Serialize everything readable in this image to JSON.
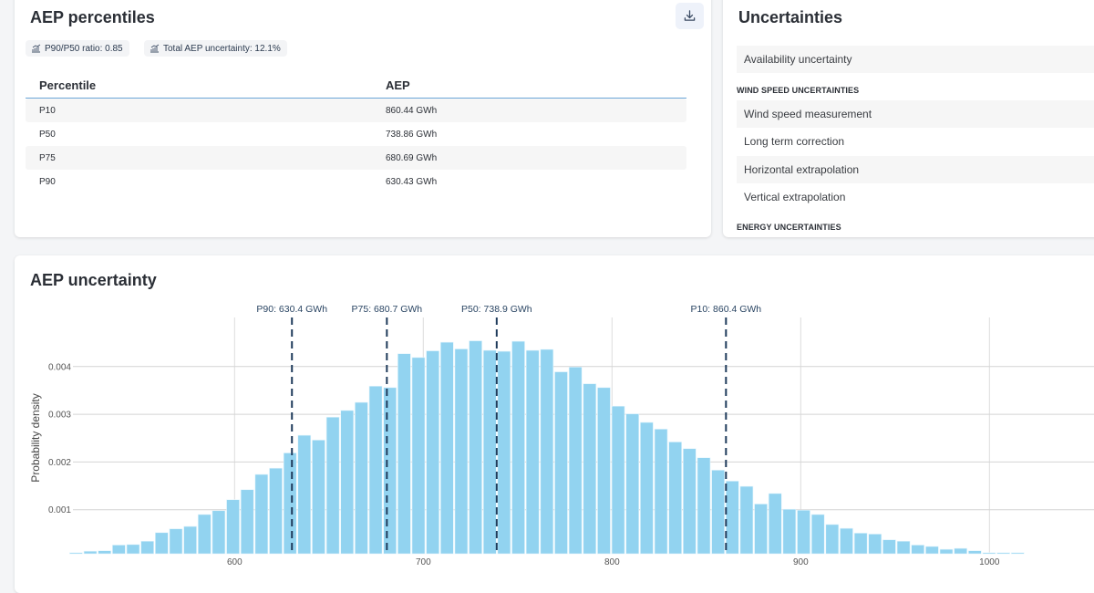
{
  "percentiles_card": {
    "title": "AEP percentiles",
    "download_icon": "download-icon",
    "badges": [
      {
        "icon": "chart-growth-icon",
        "label": "P90/P50 ratio: 0.85"
      },
      {
        "icon": "chart-growth-icon",
        "label": "Total AEP uncertainty: 12.1%"
      }
    ],
    "columns": [
      "Percentile",
      "AEP"
    ],
    "rows": [
      {
        "percentile": "P10",
        "aep": "860.44 GWh"
      },
      {
        "percentile": "P50",
        "aep": "738.86 GWh"
      },
      {
        "percentile": "P75",
        "aep": "680.69 GWh"
      },
      {
        "percentile": "P90",
        "aep": "630.43 GWh"
      }
    ]
  },
  "uncertainties_card": {
    "title": "Uncertainties",
    "top_item": "Availability uncertainty",
    "sections": [
      {
        "label": "WIND SPEED UNCERTAINTIES",
        "items": [
          "Wind speed measurement",
          "Long term correction",
          "Horizontal extrapolation",
          "Vertical extrapolation"
        ]
      },
      {
        "label": "ENERGY UNCERTAINTIES",
        "items": []
      }
    ]
  },
  "chart_card": {
    "title": "AEP uncertainty"
  },
  "chart_data": {
    "type": "bar",
    "title": "AEP uncertainty",
    "xlabel": "",
    "ylabel": "Probability density",
    "bar_color": "#92d3f0",
    "marker_color": "#1e3a5a",
    "grid": true,
    "xlim": [
      505,
      1070
    ],
    "ylim": [
      0,
      0.0046
    ],
    "xticks": [
      600,
      700,
      800,
      900,
      1000
    ],
    "yticks": [
      0.001,
      0.002,
      0.003,
      0.004
    ],
    "ytick_labels": [
      "0.001",
      "0.002",
      "0.003",
      "0.004"
    ],
    "bin_start": 516,
    "bin_width": 7.56,
    "values": [
      0.0001,
      0.00013,
      0.00014,
      0.00026,
      0.00027,
      0.00034,
      0.00052,
      0.0006,
      0.00065,
      0.0009,
      0.00098,
      0.00121,
      0.00142,
      0.00174,
      0.00187,
      0.00219,
      0.00256,
      0.00246,
      0.00294,
      0.00308,
      0.00325,
      0.00359,
      0.00356,
      0.00427,
      0.00419,
      0.00433,
      0.00451,
      0.00437,
      0.00454,
      0.00434,
      0.00432,
      0.00453,
      0.00434,
      0.00436,
      0.00389,
      0.00399,
      0.00364,
      0.00356,
      0.00317,
      0.00301,
      0.00283,
      0.00269,
      0.00242,
      0.00228,
      0.00209,
      0.00183,
      0.0016,
      0.00149,
      0.00112,
      0.00134,
      0.00101,
      0.00099,
      0.0009,
      0.00069,
      0.00061,
      0.00051,
      0.00049,
      0.00037,
      0.00034,
      0.00026,
      0.00023,
      0.00017,
      0.00019,
      0.00014,
      0.0001,
      0.0001,
      0.0001
    ],
    "markers": [
      {
        "value": 630.4,
        "label": "P90: 630.4 GWh"
      },
      {
        "value": 680.7,
        "label": "P75: 680.7 GWh"
      },
      {
        "value": 738.9,
        "label": "P50: 738.9 GWh"
      },
      {
        "value": 860.4,
        "label": "P10: 860.4 GWh"
      }
    ]
  }
}
